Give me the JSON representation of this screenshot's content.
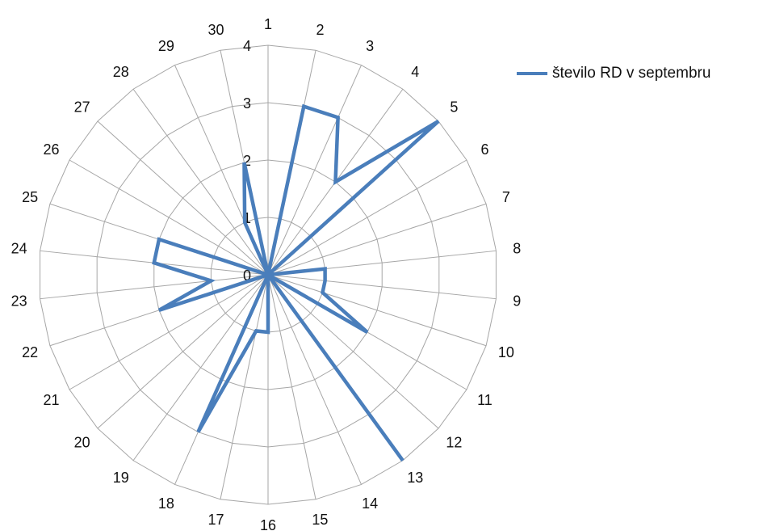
{
  "chart_data": {
    "type": "radar",
    "categories": [
      "1",
      "2",
      "3",
      "4",
      "5",
      "6",
      "7",
      "8",
      "9",
      "10",
      "11",
      "12",
      "13",
      "14",
      "15",
      "16",
      "17",
      "18",
      "19",
      "20",
      "21",
      "22",
      "23",
      "24",
      "25",
      "26",
      "27",
      "28",
      "29",
      "30"
    ],
    "series": [
      {
        "name": "število RD v septembru",
        "color": "#4a7ebb",
        "values": [
          0,
          3,
          3,
          2,
          4,
          0,
          0,
          1,
          1,
          1,
          2,
          0,
          4,
          0,
          0,
          1,
          1,
          3,
          0,
          0,
          0,
          2,
          1,
          2,
          2,
          0,
          0,
          0,
          1,
          2
        ]
      }
    ],
    "r_ticks": [
      "0",
      "1",
      "2",
      "3",
      "4"
    ],
    "r_range": [
      0,
      4
    ],
    "legend_position": "right",
    "grid": true
  }
}
